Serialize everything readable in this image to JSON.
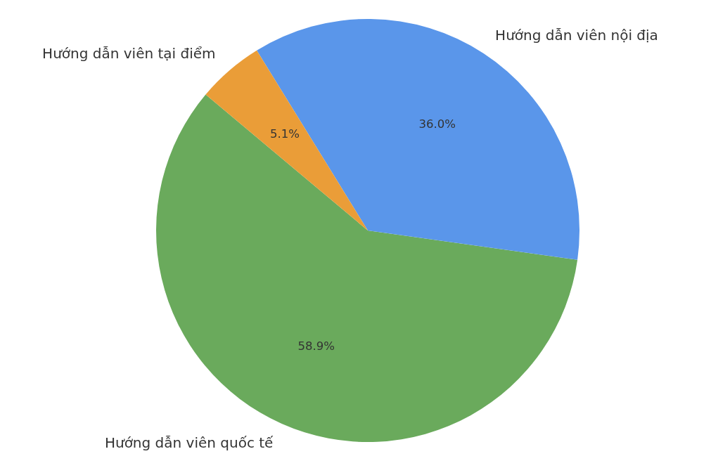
{
  "chart_data": {
    "type": "pie",
    "categories": [
      "Hướng dẫn viên quốc tế",
      "Hướng dẫn viên nội địa",
      "Hướng dẫn viên tại điểm"
    ],
    "values": [
      58.9,
      36.0,
      5.1
    ],
    "value_labels": [
      "58.9%",
      "36.0%",
      "5.1%"
    ],
    "colors": [
      "#6aaa5c",
      "#5a96ea",
      "#ea9d38"
    ]
  }
}
